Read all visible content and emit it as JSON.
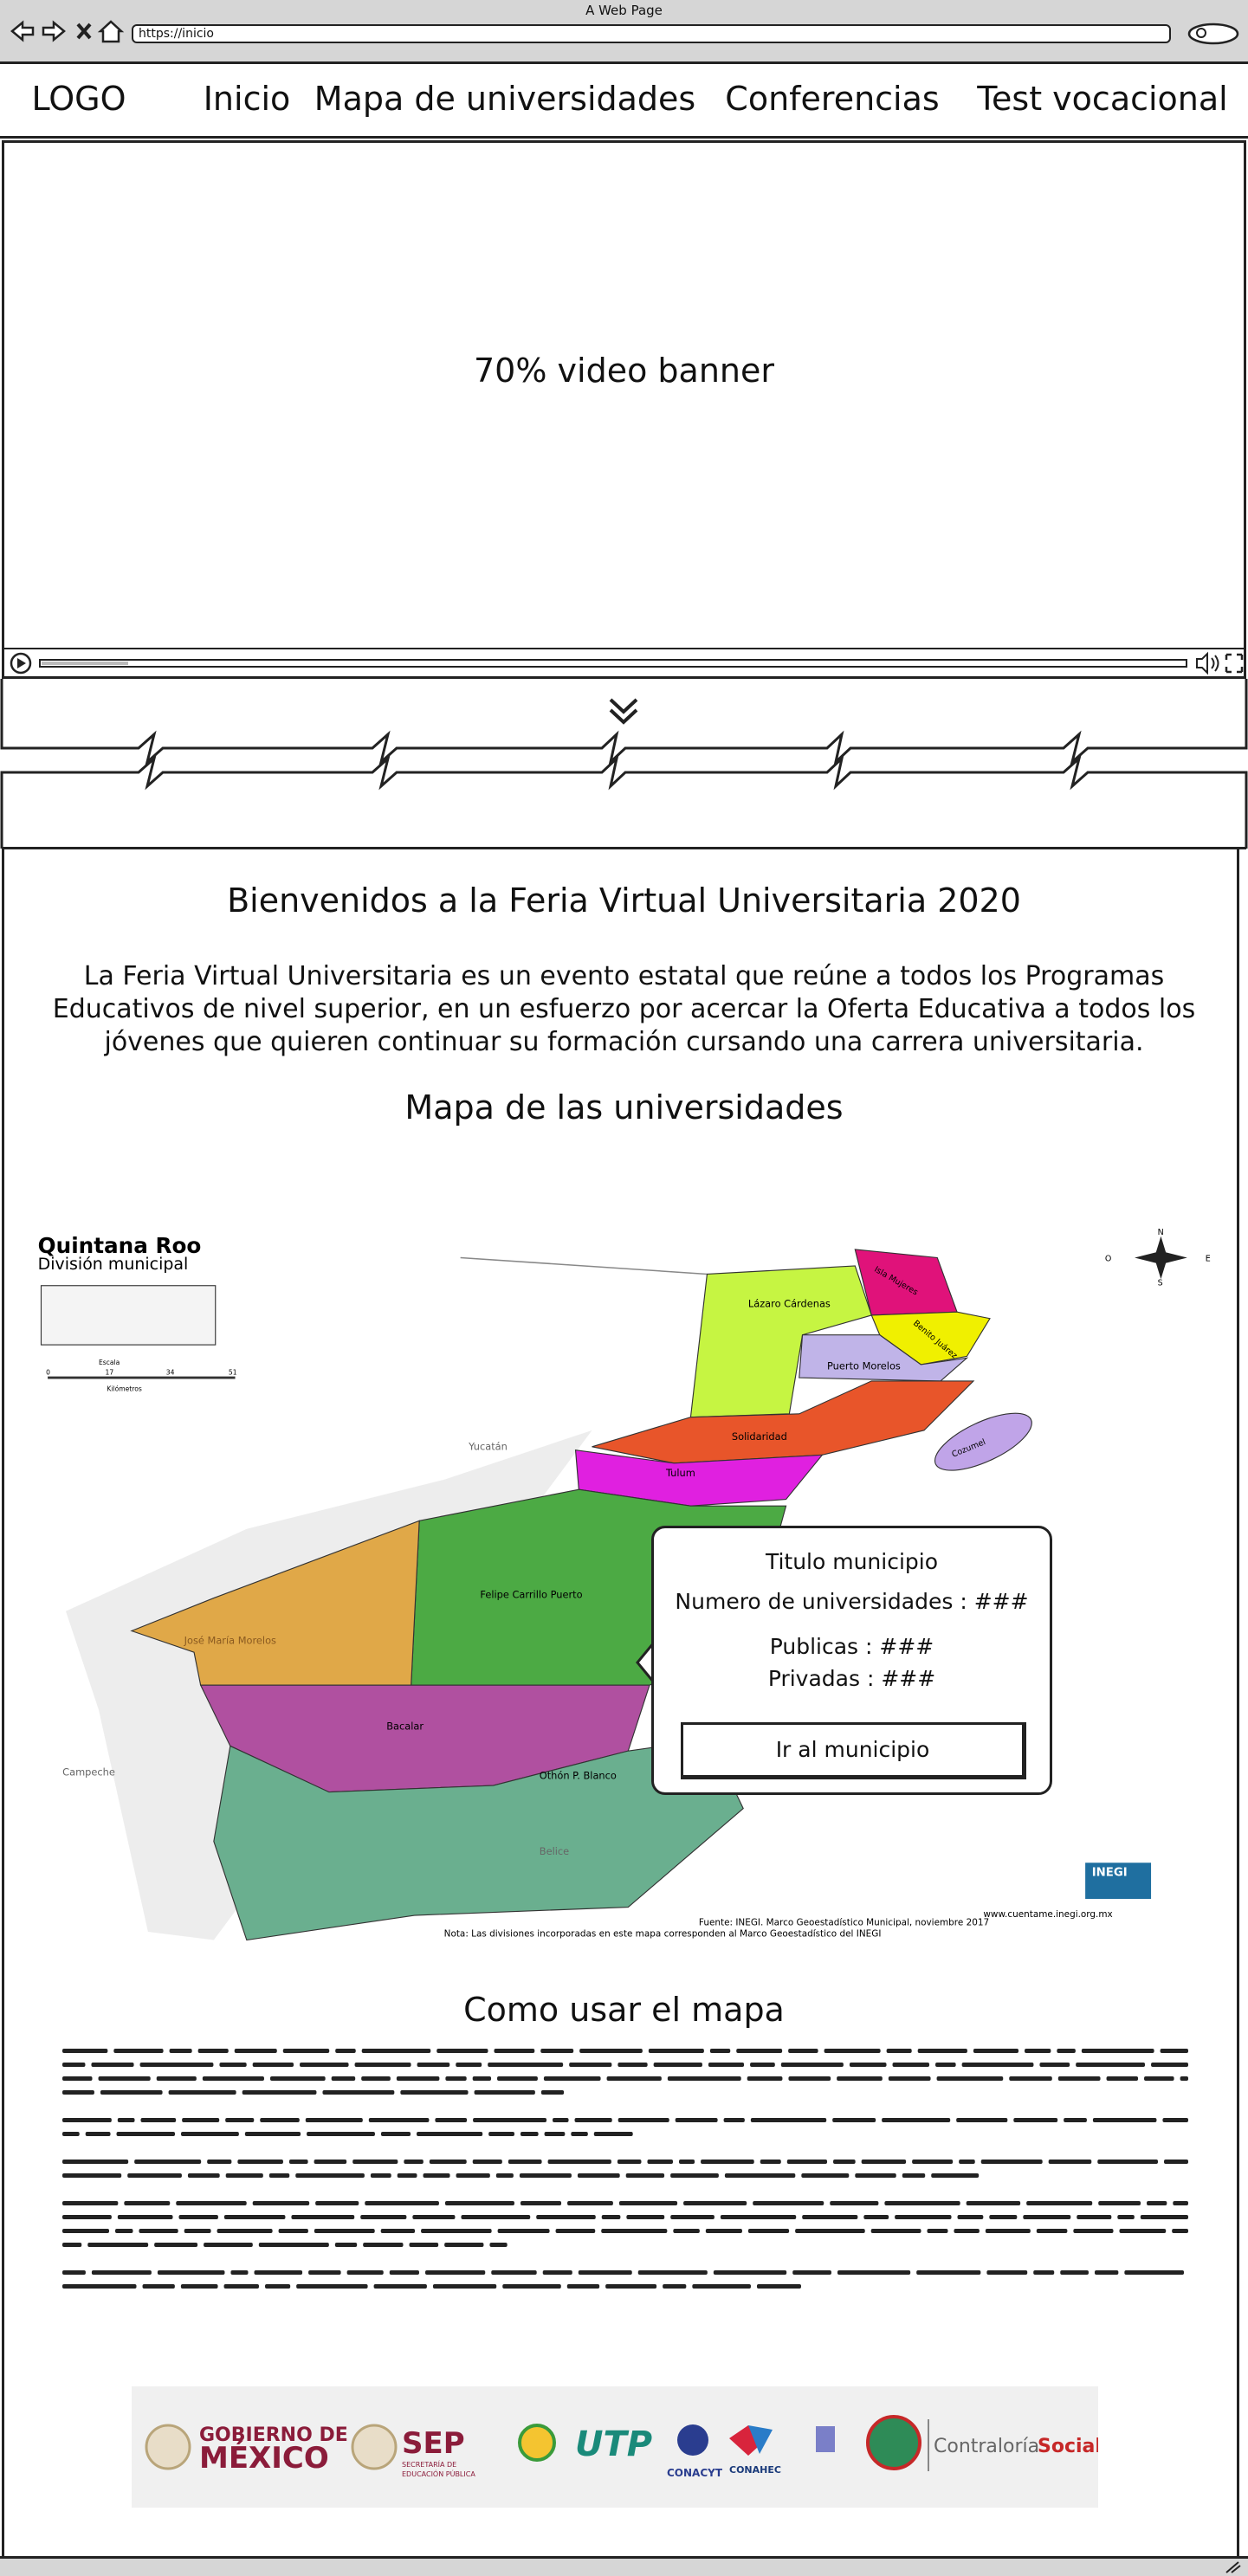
{
  "browser": {
    "title": "A Web Page",
    "url": "https://inicio"
  },
  "nav": {
    "logo": "LOGO",
    "items": [
      "Inicio",
      "Mapa de universidades",
      "Conferencias",
      "Test vocacional"
    ]
  },
  "banner": {
    "label": "70% video banner"
  },
  "welcome": {
    "title": "Bienvenidos a la Feria Virtual Universitaria 2020",
    "paragraph_lines": [
      "La Feria Virtual Universitaria es un evento estatal que reúne a todos los Programas",
      "Educativos de nivel superior, en un esfuerzo por acercar la Oferta Educativa a todos los",
      "jóvenes que quieren continuar su formación cursando una carrera universitaria."
    ]
  },
  "map_section": {
    "title": "Mapa de las universidades",
    "map": {
      "title": "Quintana Roo",
      "subtitle": "División municipal",
      "scale_label": "Escala",
      "scale_ticks": [
        0,
        17,
        34,
        51
      ],
      "scale_unit": "Kilómetros",
      "compass": [
        "N",
        "O",
        "E",
        "S"
      ],
      "municipalities": [
        "Lázaro Cárdenas",
        "Isla Mujeres",
        "Benito Juárez",
        "Puerto Morelos",
        "Cozumel",
        "Solidaridad",
        "Tulum",
        "Felipe Carrillo Puerto",
        "José María Morelos",
        "Bacalar",
        "Othón P. Blanco"
      ],
      "neighbors": [
        "Yucatán",
        "Campeche",
        "Belice"
      ],
      "inegi": "INEGI",
      "source": "Fuente: INEGI. Marco Geoestadístico Municipal, noviembre 2017",
      "website": "www.cuentame.inegi.org.mx",
      "note": "Nota: Las divisiones incorporadas en este mapa corresponden al Marco Geoestadístico del INEGI"
    },
    "popup": {
      "title": "Titulo municipio",
      "universities": "Numero de universidades : ###",
      "public": "Publicas : ###",
      "private": "Privadas : ###",
      "button": "Ir al municipio"
    }
  },
  "usage": {
    "title": "Como usar el mapa"
  },
  "footer_logos": {
    "gobierno_top": "GOBIERNO DE",
    "gobierno_bottom": "MÉXICO",
    "sep": "SEP",
    "sep_line1": "SECRETARÍA DE",
    "sep_line2": "EDUCACIÓN PÚBLICA",
    "utp": "UTP",
    "conacyt": "CONACYT",
    "conahec": "CONAHEC",
    "contraloria": "Contraloría",
    "social": "Social"
  }
}
